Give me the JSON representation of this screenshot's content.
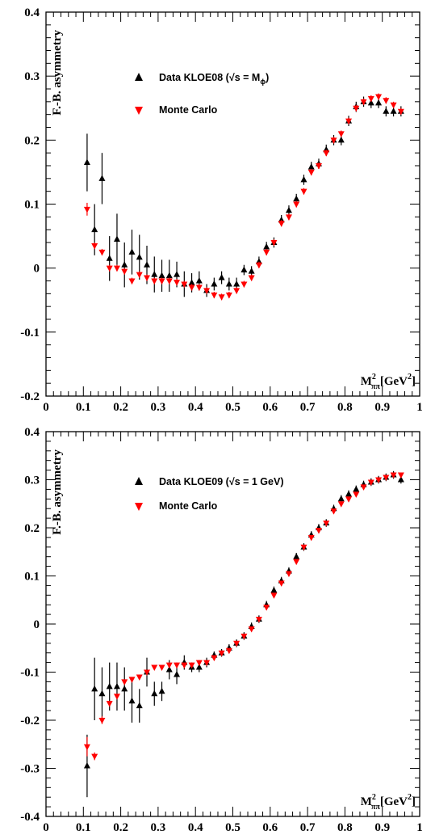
{
  "chart_data": [
    {
      "type": "scatter",
      "ylabel": "F.-B. asymmetry",
      "xlabel_html": {
        "main": "M",
        "sup": "2",
        "sub": "ππ",
        "unit": "[GeV",
        "unit_sup": "2",
        "unit_end": "]"
      },
      "xlim": [
        0,
        1
      ],
      "ylim": [
        -0.2,
        0.4
      ],
      "x_ticks": [
        "0",
        "0.1",
        "0.2",
        "0.3",
        "0.4",
        "0.5",
        "0.6",
        "0.7",
        "0.8",
        "0.9",
        "1"
      ],
      "y_ticks": [
        "-0.2",
        "-0.1",
        "0",
        "0.1",
        "0.2",
        "0.3",
        "0.4"
      ],
      "legend": {
        "position": "top-left"
      },
      "series": [
        {
          "name": "Data KLOE08 (√s = M",
          "name_sub": "ϕ",
          "name_end": ")",
          "color": "#000000",
          "marker": "triangle-up",
          "x": [
            0.11,
            0.13,
            0.15,
            0.17,
            0.19,
            0.21,
            0.23,
            0.25,
            0.27,
            0.29,
            0.31,
            0.33,
            0.35,
            0.37,
            0.39,
            0.41,
            0.43,
            0.45,
            0.47,
            0.49,
            0.51,
            0.53,
            0.55,
            0.57,
            0.59,
            0.61,
            0.63,
            0.65,
            0.67,
            0.69,
            0.71,
            0.73,
            0.75,
            0.77,
            0.79,
            0.81,
            0.83,
            0.85,
            0.87,
            0.89,
            0.91,
            0.93,
            0.95
          ],
          "y": [
            0.165,
            0.06,
            0.14,
            0.015,
            0.045,
            0.005,
            0.025,
            0.017,
            0.005,
            -0.01,
            -0.012,
            -0.012,
            -0.01,
            -0.025,
            -0.023,
            -0.02,
            -0.035,
            -0.025,
            -0.015,
            -0.025,
            -0.025,
            -0.003,
            -0.005,
            0.01,
            0.033,
            0.04,
            0.075,
            0.09,
            0.108,
            0.138,
            0.158,
            0.163,
            0.185,
            0.2,
            0.2,
            0.23,
            0.252,
            0.26,
            0.258,
            0.258,
            0.245,
            0.245,
            0.245
          ],
          "err": [
            0.045,
            0.04,
            0.04,
            0.035,
            0.04,
            0.035,
            0.035,
            0.035,
            0.03,
            0.028,
            0.025,
            0.025,
            0.02,
            0.02,
            0.015,
            0.015,
            0.01,
            0.01,
            0.01,
            0.01,
            0.01,
            0.008,
            0.008,
            0.008,
            0.008,
            0.008,
            0.008,
            0.008,
            0.008,
            0.008,
            0.008,
            0.008,
            0.008,
            0.008,
            0.008,
            0.008,
            0.008,
            0.008,
            0.008,
            0.008,
            0.008,
            0.008,
            0.008
          ]
        },
        {
          "name": "Monte Carlo",
          "color": "#ff0000",
          "marker": "triangle-down",
          "x": [
            0.11,
            0.13,
            0.15,
            0.17,
            0.19,
            0.21,
            0.23,
            0.25,
            0.27,
            0.29,
            0.31,
            0.33,
            0.35,
            0.37,
            0.39,
            0.41,
            0.43,
            0.45,
            0.47,
            0.49,
            0.51,
            0.53,
            0.55,
            0.57,
            0.59,
            0.61,
            0.63,
            0.65,
            0.67,
            0.69,
            0.71,
            0.73,
            0.75,
            0.77,
            0.79,
            0.81,
            0.83,
            0.85,
            0.87,
            0.89,
            0.91,
            0.93,
            0.95
          ],
          "y": [
            0.092,
            0.035,
            0.025,
            0.0,
            0.0,
            -0.005,
            -0.02,
            -0.01,
            -0.015,
            -0.02,
            -0.02,
            -0.02,
            -0.022,
            -0.025,
            -0.03,
            -0.03,
            -0.035,
            -0.042,
            -0.045,
            -0.042,
            -0.035,
            -0.025,
            -0.015,
            0.005,
            0.025,
            0.04,
            0.07,
            0.08,
            0.1,
            0.12,
            0.15,
            0.16,
            0.18,
            0.2,
            0.21,
            0.23,
            0.25,
            0.26,
            0.265,
            0.268,
            0.262,
            0.255,
            0.245
          ],
          "err": [
            0.01,
            0.005,
            0.005,
            0.005,
            0.005,
            0.005,
            0.005,
            0.005,
            0.005,
            0.005,
            0.005,
            0.005,
            0.005,
            0.005,
            0.005,
            0.005,
            0.005,
            0.005,
            0.005,
            0.005,
            0.005,
            0.005,
            0.005,
            0.005,
            0.005,
            0.005,
            0.005,
            0.005,
            0.005,
            0.005,
            0.005,
            0.005,
            0.005,
            0.005,
            0.005,
            0.005,
            0.005,
            0.005,
            0.005,
            0.005,
            0.005,
            0.005,
            0.005
          ]
        }
      ]
    },
    {
      "type": "scatter",
      "ylabel": "F.-B. asymmetry",
      "xlabel_html": {
        "main": "M",
        "sup": "2",
        "sub": "ππ",
        "unit": "[GeV",
        "unit_sup": "2",
        "unit_end": "]"
      },
      "xlim": [
        0,
        1
      ],
      "ylim": [
        -0.4,
        0.4
      ],
      "x_ticks": [
        "0",
        "0.1",
        "0.2",
        "0.3",
        "0.4",
        "0.5",
        "0.6",
        "0.7",
        "0.8",
        "0.9",
        "1"
      ],
      "y_ticks": [
        "-0.4",
        "-0.3",
        "-0.2",
        "-0.1",
        "0",
        "0.1",
        "0.2",
        "0.3",
        "0.4"
      ],
      "legend": {
        "position": "top-left"
      },
      "series": [
        {
          "name": "Data KLOE09 (√s = 1 GeV)",
          "color": "#000000",
          "marker": "triangle-up",
          "x": [
            0.11,
            0.13,
            0.15,
            0.17,
            0.19,
            0.21,
            0.23,
            0.25,
            0.27,
            0.29,
            0.31,
            0.33,
            0.35,
            0.37,
            0.39,
            0.41,
            0.43,
            0.45,
            0.47,
            0.49,
            0.51,
            0.53,
            0.55,
            0.57,
            0.59,
            0.61,
            0.63,
            0.65,
            0.67,
            0.69,
            0.71,
            0.73,
            0.75,
            0.77,
            0.79,
            0.81,
            0.83,
            0.85,
            0.87,
            0.89,
            0.91,
            0.93,
            0.95
          ],
          "y": [
            -0.295,
            -0.135,
            -0.145,
            -0.13,
            -0.13,
            -0.135,
            -0.16,
            -0.17,
            -0.1,
            -0.145,
            -0.14,
            -0.095,
            -0.105,
            -0.08,
            -0.09,
            -0.09,
            -0.08,
            -0.065,
            -0.06,
            -0.05,
            -0.04,
            -0.025,
            -0.005,
            0.01,
            0.04,
            0.07,
            0.09,
            0.11,
            0.14,
            0.16,
            0.185,
            0.2,
            0.21,
            0.24,
            0.26,
            0.27,
            0.28,
            0.29,
            0.295,
            0.3,
            0.305,
            0.31,
            0.3
          ],
          "err": [
            0.065,
            0.065,
            0.055,
            0.05,
            0.05,
            0.045,
            0.045,
            0.035,
            0.03,
            0.025,
            0.02,
            0.02,
            0.02,
            0.015,
            0.01,
            0.01,
            0.01,
            0.008,
            0.008,
            0.008,
            0.008,
            0.008,
            0.008,
            0.008,
            0.008,
            0.008,
            0.008,
            0.008,
            0.008,
            0.008,
            0.008,
            0.008,
            0.008,
            0.008,
            0.008,
            0.008,
            0.008,
            0.008,
            0.008,
            0.008,
            0.008,
            0.008,
            0.008
          ]
        },
        {
          "name": "Monte Carlo",
          "color": "#ff0000",
          "marker": "triangle-down",
          "x": [
            0.11,
            0.13,
            0.15,
            0.17,
            0.19,
            0.21,
            0.23,
            0.25,
            0.27,
            0.29,
            0.31,
            0.33,
            0.35,
            0.37,
            0.39,
            0.41,
            0.43,
            0.45,
            0.47,
            0.49,
            0.51,
            0.53,
            0.55,
            0.57,
            0.59,
            0.61,
            0.63,
            0.65,
            0.67,
            0.69,
            0.71,
            0.73,
            0.75,
            0.77,
            0.79,
            0.81,
            0.83,
            0.85,
            0.87,
            0.89,
            0.91,
            0.93,
            0.95
          ],
          "y": [
            -0.255,
            -0.275,
            -0.2,
            -0.165,
            -0.15,
            -0.12,
            -0.115,
            -0.11,
            -0.1,
            -0.09,
            -0.09,
            -0.085,
            -0.085,
            -0.085,
            -0.085,
            -0.08,
            -0.08,
            -0.07,
            -0.06,
            -0.055,
            -0.04,
            -0.025,
            -0.01,
            0.01,
            0.035,
            0.06,
            0.085,
            0.105,
            0.13,
            0.16,
            0.18,
            0.195,
            0.21,
            0.235,
            0.25,
            0.26,
            0.27,
            0.285,
            0.295,
            0.3,
            0.305,
            0.31,
            0.31
          ],
          "err": [
            0.02,
            0.008,
            0.008,
            0.005,
            0.005,
            0.005,
            0.005,
            0.005,
            0.005,
            0.005,
            0.005,
            0.005,
            0.005,
            0.005,
            0.005,
            0.005,
            0.005,
            0.005,
            0.005,
            0.005,
            0.005,
            0.005,
            0.005,
            0.005,
            0.005,
            0.005,
            0.005,
            0.005,
            0.005,
            0.005,
            0.005,
            0.005,
            0.005,
            0.005,
            0.005,
            0.005,
            0.005,
            0.005,
            0.005,
            0.005,
            0.005,
            0.005,
            0.005
          ]
        }
      ]
    }
  ]
}
